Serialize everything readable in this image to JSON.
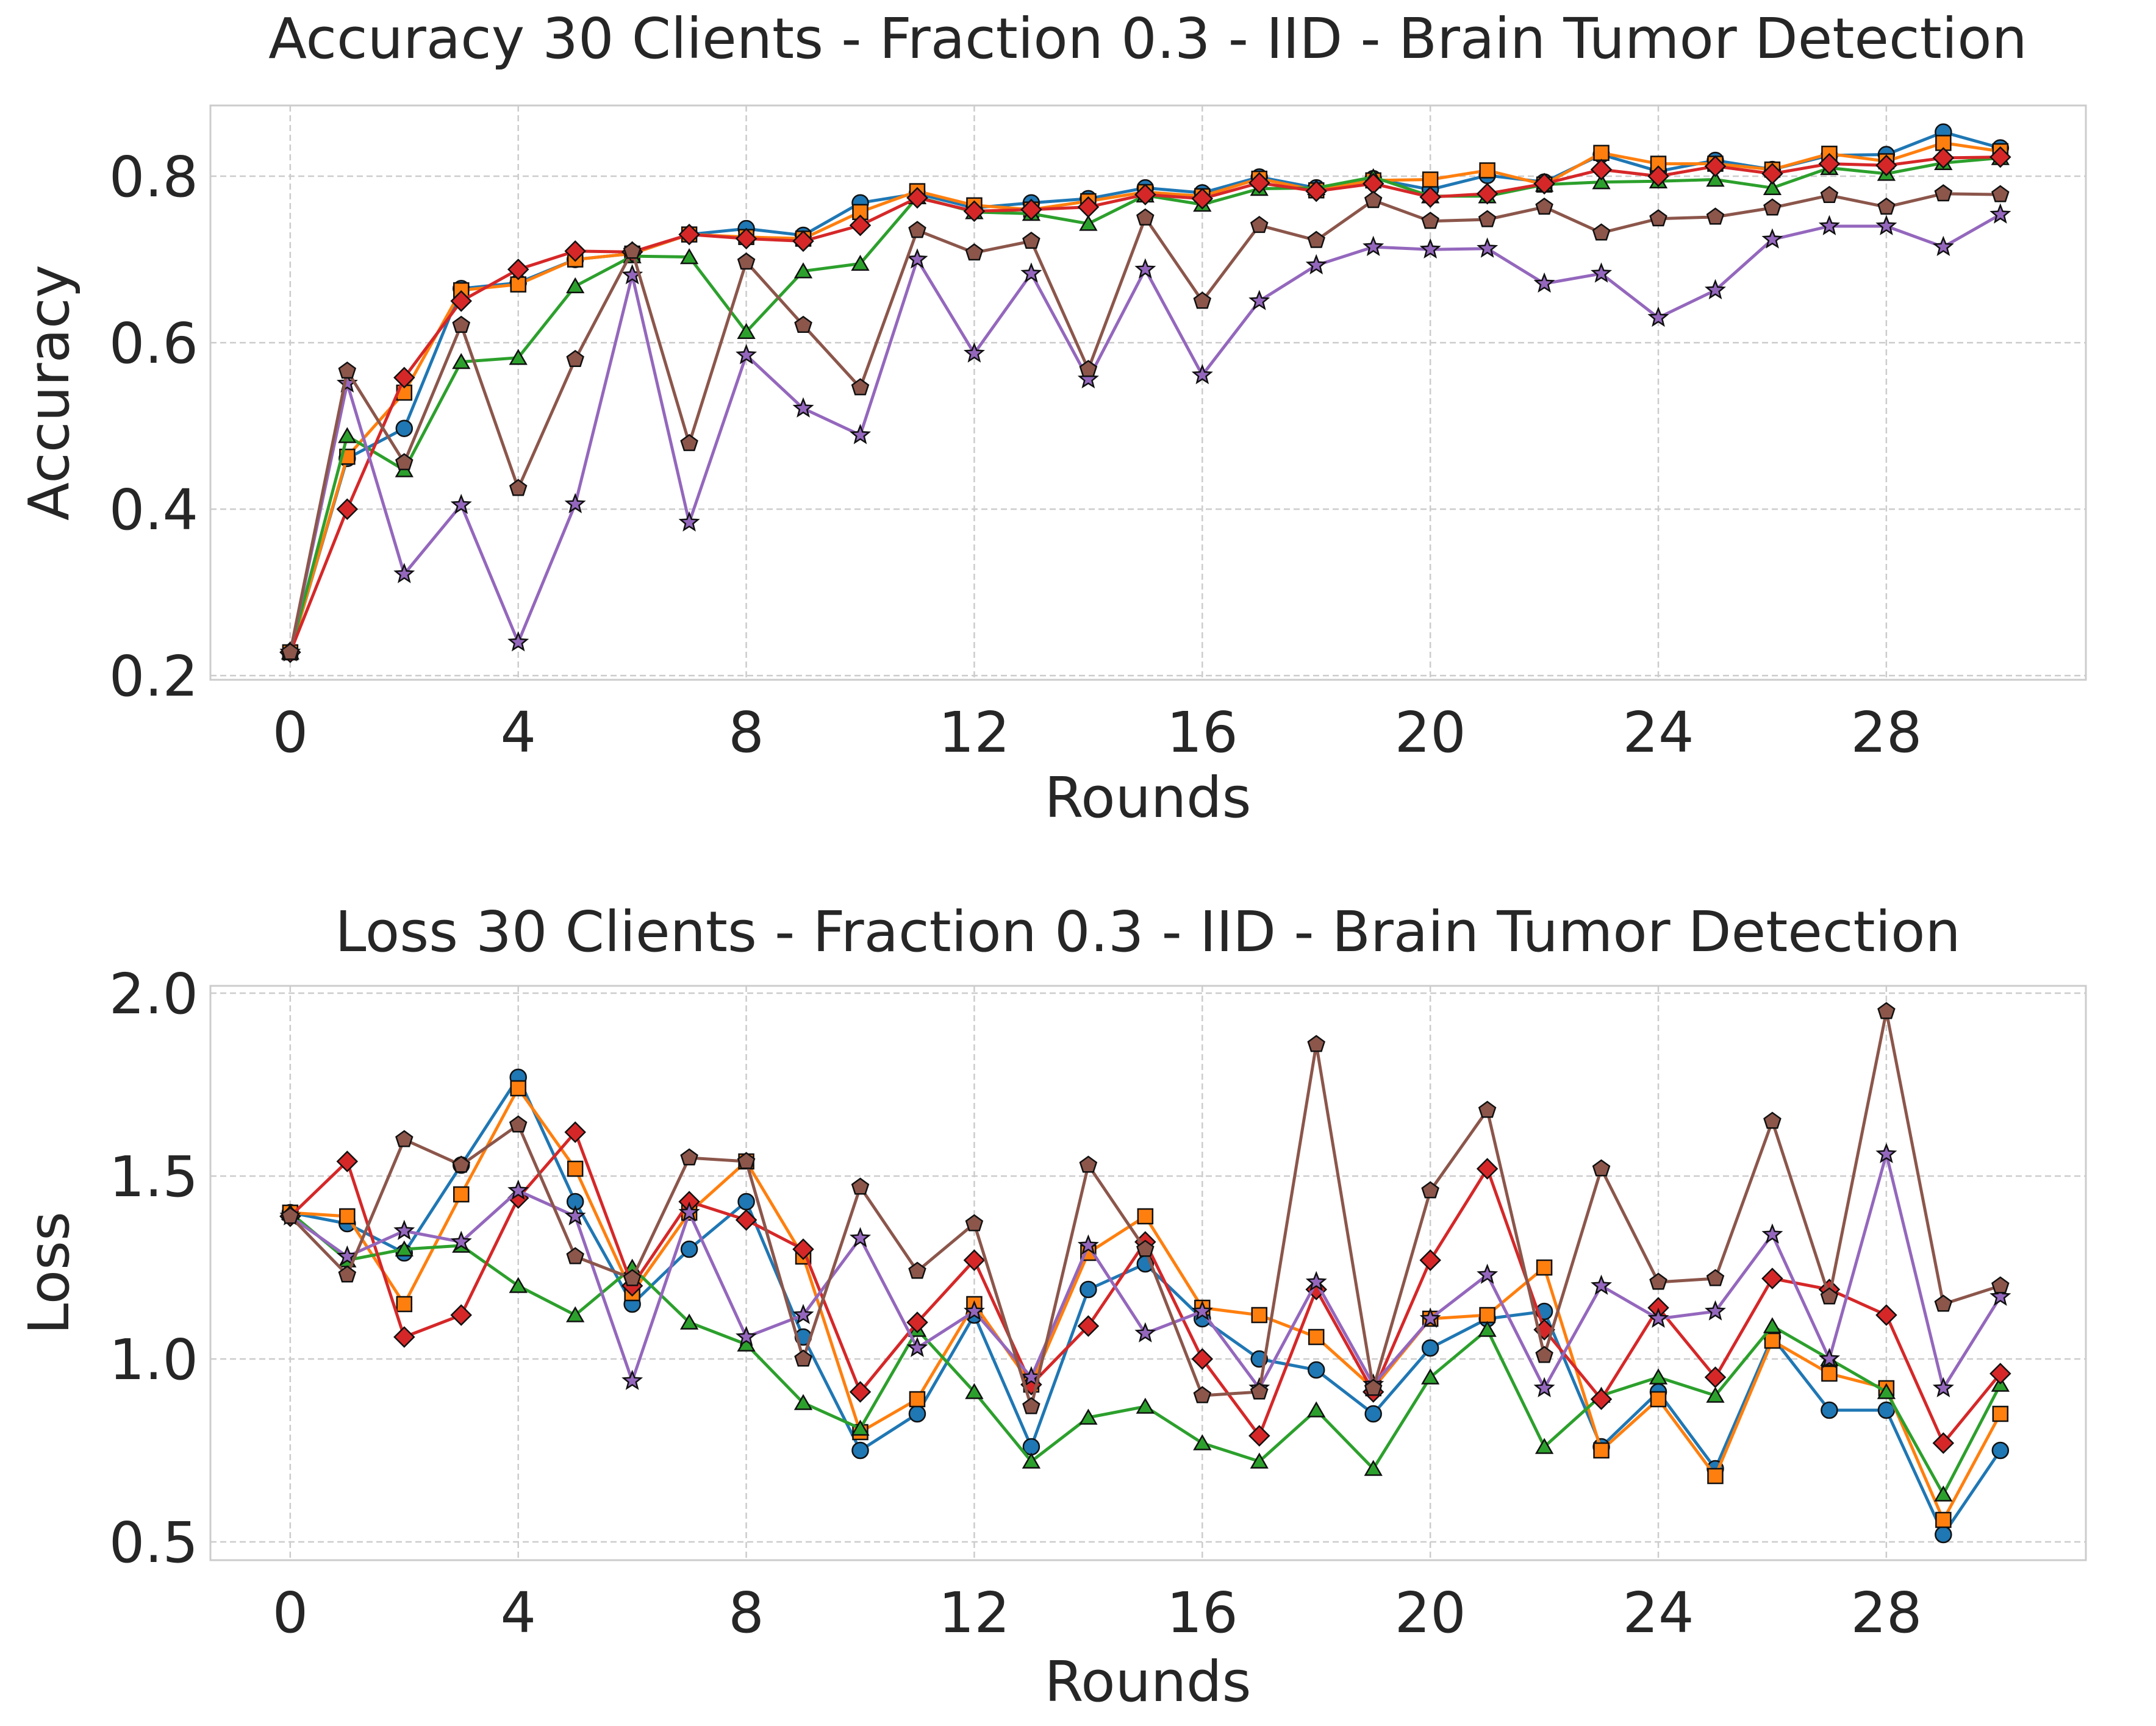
{
  "chart_data": [
    {
      "type": "line",
      "title": "Accuracy 30 Clients - Fraction 0.3 - IID - Brain Tumor Detection",
      "xlabel": "Rounds",
      "ylabel": "Accuracy",
      "xlim": [
        -1.4,
        31.5
      ],
      "ylim": [
        0.195,
        0.885
      ],
      "xticks": [
        0,
        4,
        8,
        12,
        16,
        20,
        24,
        28
      ],
      "yticks": [
        0.2,
        0.4,
        0.6,
        0.8
      ],
      "ytick_labels": [
        "0.2",
        "0.4",
        "0.6",
        "0.8"
      ],
      "grid": true,
      "x": [
        0,
        1,
        2,
        3,
        4,
        5,
        6,
        7,
        8,
        9,
        10,
        11,
        12,
        13,
        14,
        15,
        16,
        17,
        18,
        19,
        20,
        21,
        22,
        23,
        24,
        25,
        26,
        27,
        28,
        29,
        30
      ],
      "series": [
        {
          "color": "#1f77b4",
          "marker": "circle",
          "values": [
            0.228,
            0.461,
            0.497,
            0.665,
            0.672,
            0.7,
            0.707,
            0.73,
            0.737,
            0.729,
            0.768,
            0.779,
            0.762,
            0.768,
            0.773,
            0.786,
            0.78,
            0.799,
            0.786,
            0.797,
            0.784,
            0.801,
            0.793,
            0.826,
            0.806,
            0.819,
            0.808,
            0.825,
            0.826,
            0.853,
            0.834
          ]
        },
        {
          "color": "#ff7f0e",
          "marker": "square",
          "values": [
            0.228,
            0.463,
            0.54,
            0.663,
            0.67,
            0.7,
            0.707,
            0.73,
            0.727,
            0.725,
            0.757,
            0.782,
            0.765,
            0.76,
            0.77,
            0.781,
            0.776,
            0.797,
            0.783,
            0.795,
            0.796,
            0.807,
            0.79,
            0.828,
            0.815,
            0.815,
            0.808,
            0.827,
            0.818,
            0.84,
            0.83
          ]
        },
        {
          "color": "#2ca02c",
          "marker": "triangle",
          "values": [
            0.228,
            0.488,
            0.447,
            0.577,
            0.582,
            0.668,
            0.704,
            0.703,
            0.613,
            0.686,
            0.695,
            0.775,
            0.757,
            0.755,
            0.743,
            0.777,
            0.766,
            0.785,
            0.786,
            0.799,
            0.776,
            0.776,
            0.79,
            0.793,
            0.794,
            0.796,
            0.786,
            0.81,
            0.803,
            0.816,
            0.822
          ]
        },
        {
          "color": "#d62728",
          "marker": "diamond",
          "values": [
            0.228,
            0.4,
            0.558,
            0.65,
            0.688,
            0.71,
            0.709,
            0.73,
            0.725,
            0.722,
            0.741,
            0.774,
            0.758,
            0.76,
            0.763,
            0.778,
            0.773,
            0.792,
            0.782,
            0.791,
            0.775,
            0.779,
            0.791,
            0.808,
            0.8,
            0.812,
            0.803,
            0.815,
            0.813,
            0.822,
            0.823
          ]
        },
        {
          "color": "#9467bd",
          "marker": "star",
          "values": [
            0.228,
            0.551,
            0.322,
            0.405,
            0.24,
            0.406,
            0.681,
            0.384,
            0.585,
            0.521,
            0.489,
            0.7,
            0.587,
            0.683,
            0.556,
            0.688,
            0.561,
            0.65,
            0.693,
            0.715,
            0.712,
            0.713,
            0.671,
            0.683,
            0.63,
            0.663,
            0.724,
            0.74,
            0.74,
            0.715,
            0.754
          ]
        },
        {
          "color": "#8c564b",
          "marker": "pentagon",
          "values": [
            0.228,
            0.566,
            0.456,
            0.621,
            0.425,
            0.58,
            0.71,
            0.479,
            0.697,
            0.621,
            0.546,
            0.735,
            0.708,
            0.722,
            0.568,
            0.75,
            0.65,
            0.741,
            0.723,
            0.771,
            0.746,
            0.748,
            0.763,
            0.732,
            0.749,
            0.751,
            0.762,
            0.777,
            0.763,
            0.779,
            0.778
          ]
        }
      ]
    },
    {
      "type": "line",
      "title": "Loss 30 Clients - Fraction 0.3 - IID - Brain Tumor Detection",
      "xlabel": "Rounds",
      "ylabel": "Loss",
      "xlim": [
        -1.4,
        31.5
      ],
      "ylim": [
        0.45,
        2.02
      ],
      "xticks": [
        0,
        4,
        8,
        12,
        16,
        20,
        24,
        28
      ],
      "yticks": [
        0.5,
        1.0,
        1.5,
        2.0
      ],
      "ytick_labels": [
        "0.5",
        "1.0",
        "1.5",
        "2.0"
      ],
      "grid": true,
      "x": [
        0,
        1,
        2,
        3,
        4,
        5,
        6,
        7,
        8,
        9,
        10,
        11,
        12,
        13,
        14,
        15,
        16,
        17,
        18,
        19,
        20,
        21,
        22,
        23,
        24,
        25,
        26,
        27,
        28,
        29,
        30
      ],
      "series": [
        {
          "color": "#1f77b4",
          "marker": "circle",
          "values": [
            1.4,
            1.37,
            1.29,
            1.53,
            1.77,
            1.43,
            1.15,
            1.3,
            1.43,
            1.06,
            0.75,
            0.85,
            1.12,
            0.76,
            1.19,
            1.26,
            1.11,
            1.0,
            0.97,
            0.85,
            1.03,
            1.11,
            1.13,
            0.76,
            0.91,
            0.7,
            1.06,
            0.86,
            0.86,
            0.52,
            0.75
          ]
        },
        {
          "color": "#ff7f0e",
          "marker": "square",
          "values": [
            1.4,
            1.39,
            1.15,
            1.45,
            1.74,
            1.52,
            1.18,
            1.4,
            1.54,
            1.28,
            0.8,
            0.89,
            1.15,
            0.93,
            1.29,
            1.39,
            1.14,
            1.12,
            1.06,
            0.92,
            1.11,
            1.12,
            1.25,
            0.75,
            0.89,
            0.68,
            1.05,
            0.96,
            0.92,
            0.56,
            0.85
          ]
        },
        {
          "color": "#2ca02c",
          "marker": "triangle",
          "values": [
            1.4,
            1.27,
            1.3,
            1.31,
            1.2,
            1.12,
            1.25,
            1.1,
            1.04,
            0.88,
            0.81,
            1.08,
            0.91,
            0.72,
            0.84,
            0.87,
            0.77,
            0.72,
            0.86,
            0.7,
            0.95,
            1.08,
            0.76,
            0.9,
            0.95,
            0.9,
            1.09,
            1.0,
            0.91,
            0.63,
            0.93
          ]
        },
        {
          "color": "#d62728",
          "marker": "diamond",
          "values": [
            1.39,
            1.54,
            1.06,
            1.12,
            1.44,
            1.62,
            1.2,
            1.43,
            1.38,
            1.3,
            0.91,
            1.1,
            1.27,
            0.93,
            1.09,
            1.32,
            1.0,
            0.79,
            1.19,
            0.91,
            1.27,
            1.52,
            1.08,
            0.89,
            1.14,
            0.95,
            1.22,
            1.19,
            1.12,
            0.77,
            0.96
          ]
        },
        {
          "color": "#9467bd",
          "marker": "star",
          "values": [
            1.39,
            1.28,
            1.35,
            1.32,
            1.46,
            1.39,
            0.94,
            1.4,
            1.06,
            1.12,
            1.33,
            1.03,
            1.13,
            0.95,
            1.31,
            1.07,
            1.13,
            0.92,
            1.21,
            0.93,
            1.11,
            1.23,
            0.92,
            1.2,
            1.11,
            1.13,
            1.34,
            1.0,
            1.56,
            0.92,
            1.17
          ]
        },
        {
          "color": "#8c564b",
          "marker": "pentagon",
          "values": [
            1.39,
            1.23,
            1.6,
            1.53,
            1.64,
            1.28,
            1.22,
            1.55,
            1.54,
            1.0,
            1.47,
            1.24,
            1.37,
            0.87,
            1.53,
            1.3,
            0.9,
            0.91,
            1.86,
            0.92,
            1.46,
            1.68,
            1.01,
            1.52,
            1.21,
            1.22,
            1.65,
            1.17,
            1.95,
            1.15,
            1.2
          ]
        }
      ]
    }
  ]
}
